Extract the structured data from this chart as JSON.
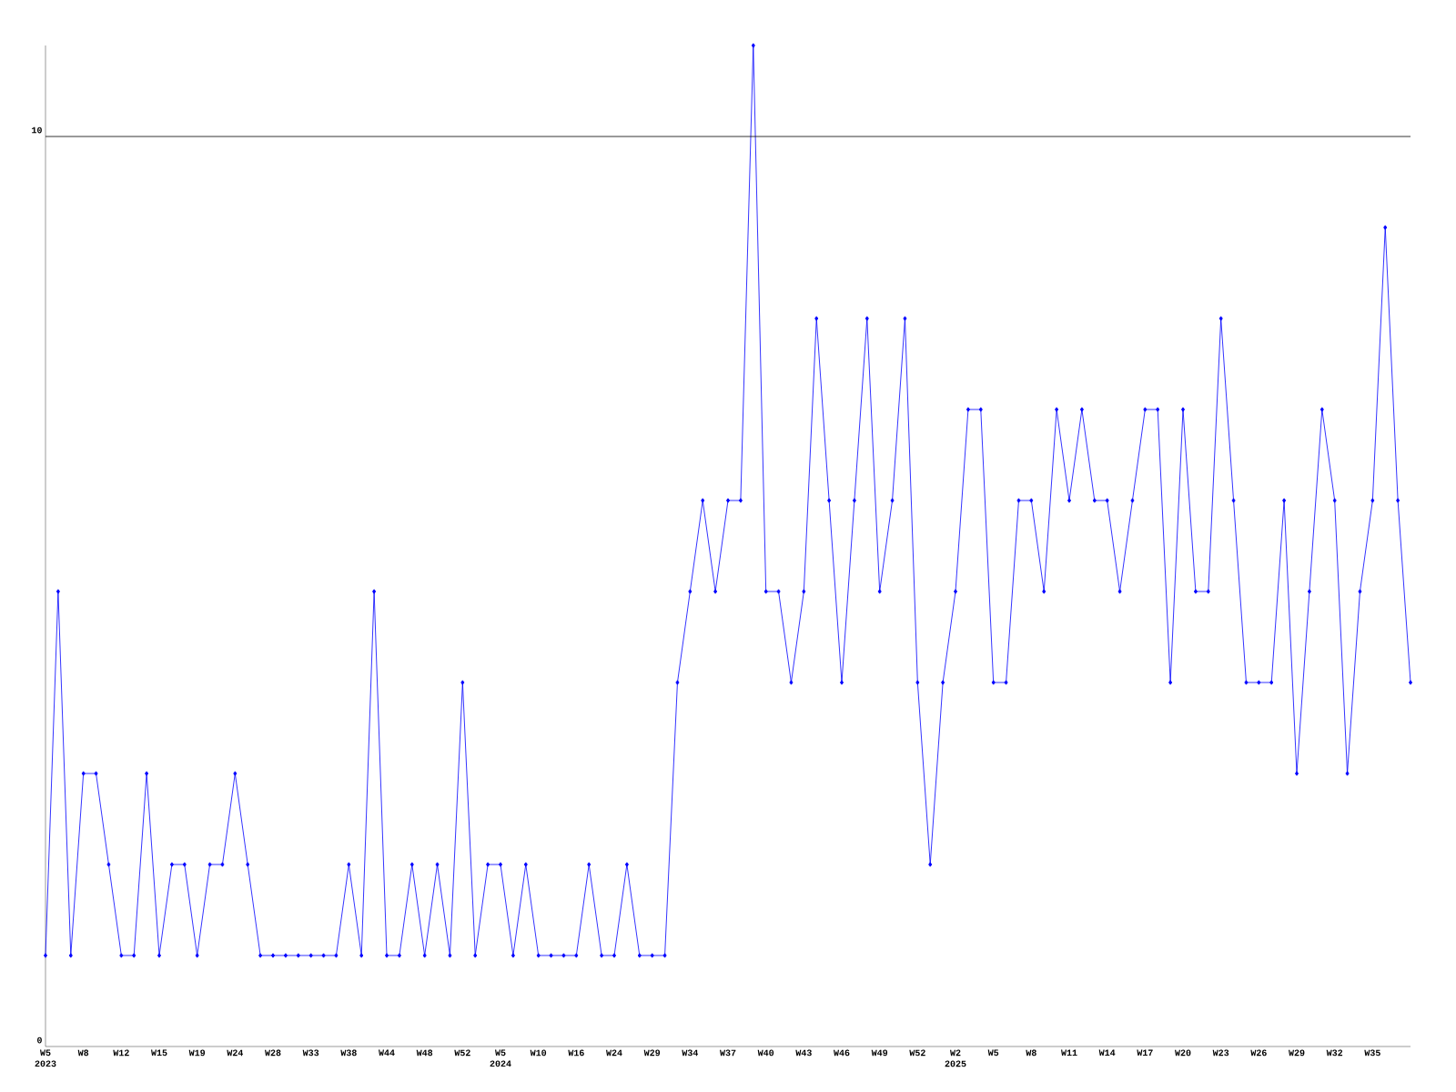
{
  "chart_data": {
    "type": "line",
    "categories": [
      "W5 2023",
      null,
      null,
      "W8",
      null,
      null,
      "W12",
      null,
      null,
      "W15",
      null,
      null,
      "W19",
      null,
      null,
      "W24",
      null,
      null,
      "W28",
      null,
      null,
      "W33",
      null,
      null,
      "W38",
      null,
      null,
      "W44",
      null,
      null,
      "W48",
      null,
      null,
      "W52",
      null,
      null,
      "W5 2024",
      null,
      null,
      "W10",
      null,
      null,
      "W16",
      null,
      null,
      "W24",
      null,
      null,
      "W29",
      null,
      null,
      "W34",
      null,
      null,
      "W37",
      null,
      null,
      "W40",
      null,
      null,
      "W43",
      null,
      null,
      "W46",
      null,
      null,
      "W49",
      null,
      null,
      "W52",
      null,
      null,
      "W2 2025",
      null,
      null,
      "W5",
      null,
      null,
      "W8",
      null,
      null,
      "W11",
      null,
      null,
      "W14",
      null,
      null,
      "W17",
      null,
      null,
      "W20",
      null,
      null,
      "W23",
      null,
      null,
      "W26",
      null,
      null,
      "W29",
      null,
      null,
      "W32",
      null,
      null,
      "W35",
      null,
      null,
      null
    ],
    "series": [
      {
        "color": "#0000ff",
        "values": [
          1,
          5,
          1,
          3,
          3,
          2,
          1,
          1,
          3,
          1,
          2,
          2,
          1,
          2,
          2,
          3,
          2,
          1,
          1,
          1,
          1,
          1,
          1,
          1,
          2,
          1,
          5,
          1,
          1,
          2,
          1,
          2,
          1,
          4,
          1,
          2,
          2,
          1,
          2,
          1,
          1,
          1,
          1,
          2,
          1,
          1,
          2,
          1,
          1,
          1,
          4,
          5,
          6,
          5,
          6,
          6,
          11,
          5,
          5,
          4,
          5,
          8,
          6,
          4,
          6,
          8,
          5,
          6,
          8,
          4,
          2,
          4,
          5,
          7,
          7,
          4,
          4,
          6,
          6,
          5,
          7,
          6,
          7,
          6,
          6,
          5,
          6,
          7,
          7,
          4,
          7,
          5,
          5,
          8,
          6,
          4,
          4,
          4,
          6,
          3,
          5,
          7,
          6,
          3,
          5,
          6,
          9,
          6,
          4
        ]
      }
    ],
    "ylim": [
      0,
      11
    ],
    "yticks": [
      0,
      10
    ],
    "ref_lines": [
      {
        "axis": "y",
        "value": 10,
        "color": "#000000"
      }
    ],
    "marker": "diamond",
    "line_style": "solid"
  }
}
